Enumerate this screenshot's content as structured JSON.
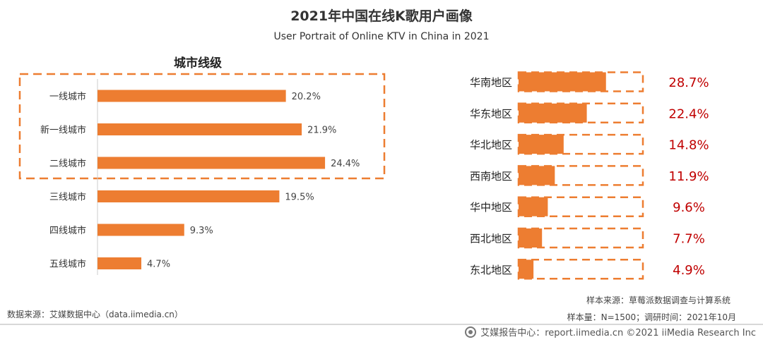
{
  "title": "2021年中国在线K歌用户画像",
  "subtitle": "User Portrait of Online KTV in China in 2021",
  "colors": {
    "bar": "#ED7D31",
    "dash": "#ED7D31",
    "pct_right": "#C00000",
    "text": "#333333"
  },
  "chart_data": [
    {
      "type": "bar",
      "orientation": "horizontal",
      "title": "城市线级",
      "categories": [
        "一线城市",
        "新一线城市",
        "二线城市",
        "三线城市",
        "四线城市",
        "五线城市"
      ],
      "values": [
        20.2,
        21.9,
        24.4,
        19.5,
        9.3,
        4.7
      ],
      "value_labels": [
        "20.2%",
        "21.9%",
        "24.4%",
        "19.5%",
        "9.3%",
        "4.7%"
      ],
      "highlighted": [
        "一线城市",
        "新一线城市",
        "二线城市"
      ],
      "xlim": [
        0,
        25
      ]
    },
    {
      "type": "bar",
      "orientation": "horizontal",
      "title": "",
      "categories": [
        "华南地区",
        "华东地区",
        "华北地区",
        "西南地区",
        "华中地区",
        "西北地区",
        "东北地区"
      ],
      "values": [
        28.7,
        22.4,
        14.8,
        11.9,
        9.6,
        7.7,
        4.9
      ],
      "value_labels": [
        "28.7%",
        "22.4%",
        "14.8%",
        "11.9%",
        "9.6%",
        "7.7%",
        "4.9%"
      ],
      "xlim": [
        0,
        100
      ]
    }
  ],
  "notes": {
    "data_source": "数据来源：艾媒数据中心（data.iimedia.cn）",
    "sample_source": "样本来源：草莓派数据调查与计算系统",
    "sample_size": "样本量：N=1500；调研时间：2021年10月",
    "footer": "艾媒报告中心：report.iimedia.cn  ©2021  iiMedia Research  Inc"
  }
}
